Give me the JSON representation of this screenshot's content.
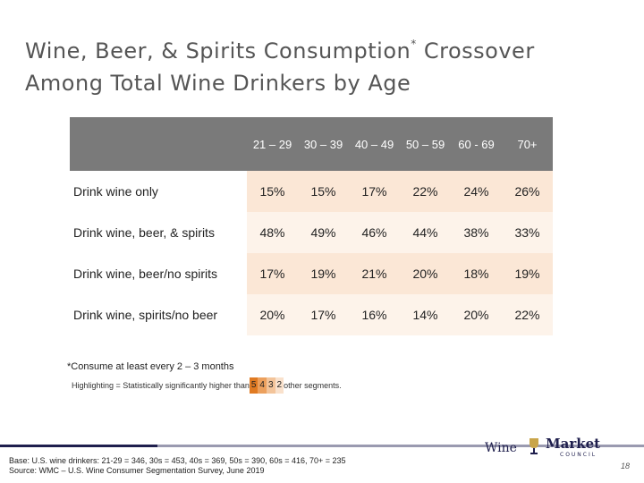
{
  "title": {
    "line1_a": "Wine, Beer, & Spirits Consumption",
    "sup": "*",
    "line1_b": " Crossover",
    "line2": "Among Total Wine Drinkers by Age"
  },
  "table": {
    "columns": [
      "21 – 29",
      "30 – 39",
      "40 – 49",
      "50 – 59",
      "60 - 69",
      "70+"
    ],
    "rows": [
      {
        "label": "Drink wine only",
        "values": [
          "15%",
          "15%",
          "17%",
          "22%",
          "24%",
          "26%"
        ]
      },
      {
        "label": "Drink wine, beer, & spirits",
        "values": [
          "48%",
          "49%",
          "46%",
          "44%",
          "38%",
          "33%"
        ]
      },
      {
        "label": "Drink wine, beer/no spirits",
        "values": [
          "17%",
          "19%",
          "21%",
          "20%",
          "18%",
          "19%"
        ]
      },
      {
        "label": "Drink wine, spirits/no beer",
        "values": [
          "20%",
          "17%",
          "16%",
          "14%",
          "20%",
          "22%"
        ]
      }
    ]
  },
  "footnote": "*Consume at least every 2 – 3 months",
  "legend": {
    "prefix": "Highlighting = Statistically significantly higher than",
    "swatches": [
      "5",
      "4",
      "3",
      "2"
    ],
    "suffix": "other segments."
  },
  "source": {
    "line1": "Base: U.S. wine drinkers: 21-29 = 346, 30s = 453, 40s = 369, 50s = 390, 60s = 416, 70+ = 235",
    "line2": "Source: WMC – U.S. Wine Consumer Segmentation Survey, June 2019"
  },
  "logo": {
    "wine": "Wine",
    "market": "Market",
    "council": "COUNCIL"
  },
  "page_number": "18",
  "colors": {
    "header_bg": "#7a7a7a",
    "title": "#555555",
    "accent_dark": "#1f1f4d",
    "highlight5": "#e07a22"
  }
}
